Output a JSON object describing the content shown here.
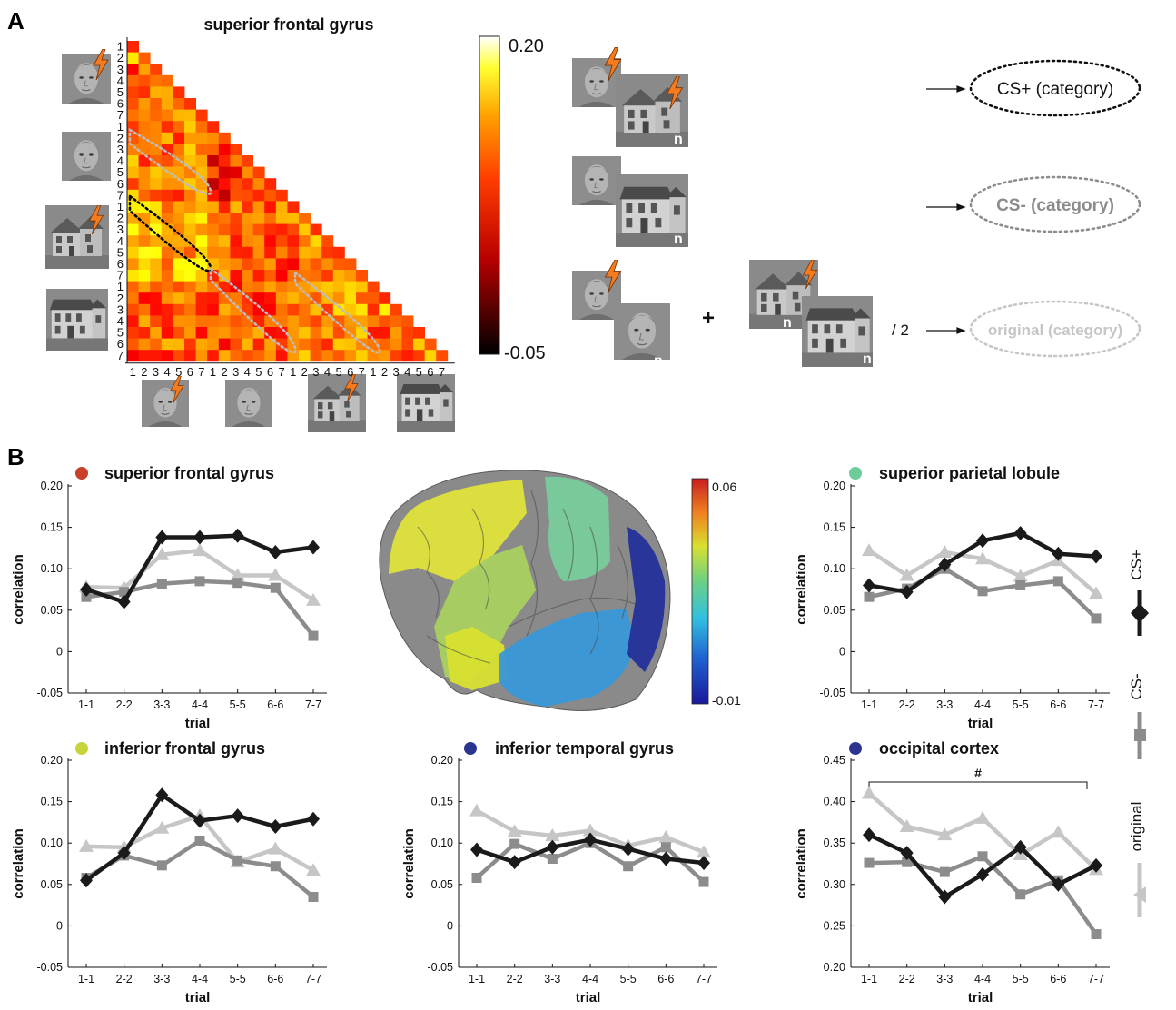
{
  "panels": {
    "a": "A",
    "b": "B"
  },
  "panel_a": {
    "title": "superior frontal gyrus",
    "colorbar": {
      "max_label": "0.20",
      "min_label": "-0.05"
    },
    "matrix_tick_labels": [
      "1",
      "2",
      "3",
      "4",
      "5",
      "6",
      "7"
    ],
    "markers": {
      "n": "n",
      "plus": "+",
      "div": "/ 2"
    },
    "schema": {
      "cs_plus": "CS+ (category)",
      "cs_minus": "CS- (category)",
      "original": "original (category)"
    }
  },
  "brain_colorbar": {
    "max_label": "0.06",
    "min_label": "-0.01"
  },
  "legend": {
    "cs_plus": "CS+",
    "cs_minus": "CS-",
    "original": "original"
  },
  "colors": {
    "cs_plus": "#1a1a1a",
    "cs_minus": "#8c8c8c",
    "original": "#c6c6c6"
  },
  "chart_data": [
    {
      "type": "line",
      "title": "superior frontal gyrus",
      "title_dot_color": "#c8402b",
      "xlabel": "trial",
      "ylabel": "correlation",
      "x": [
        "1-1",
        "2-2",
        "3-3",
        "4-4",
        "5-5",
        "6-6",
        "7-7"
      ],
      "ylim": [
        -0.05,
        0.2
      ],
      "yticks": [
        "0.20",
        "0.15",
        "0.10",
        "0.05",
        "0",
        "-0.05"
      ],
      "series": [
        {
          "name": "CS+",
          "values": [
            0.075,
            0.06,
            0.138,
            0.138,
            0.14,
            0.12,
            0.126
          ]
        },
        {
          "name": "CS-",
          "values": [
            0.066,
            0.072,
            0.082,
            0.085,
            0.083,
            0.077,
            0.019
          ]
        },
        {
          "name": "original",
          "values": [
            0.078,
            0.077,
            0.117,
            0.122,
            0.092,
            0.092,
            0.062
          ]
        }
      ]
    },
    {
      "type": "line",
      "title": "superior parietal lobule",
      "title_dot_color": "#6ecb9c",
      "xlabel": "trial",
      "ylabel": "correlation",
      "x": [
        "1-1",
        "2-2",
        "3-3",
        "4-4",
        "5-5",
        "6-6",
        "7-7"
      ],
      "ylim": [
        -0.05,
        0.2
      ],
      "yticks": [
        "0.20",
        "0.15",
        "0.10",
        "0.05",
        "0",
        "-0.05"
      ],
      "series": [
        {
          "name": "CS+",
          "values": [
            0.08,
            0.072,
            0.105,
            0.134,
            0.143,
            0.118,
            0.115
          ]
        },
        {
          "name": "CS-",
          "values": [
            0.066,
            0.076,
            0.1,
            0.073,
            0.08,
            0.085,
            0.04
          ]
        },
        {
          "name": "original",
          "values": [
            0.122,
            0.092,
            0.12,
            0.112,
            0.091,
            0.11,
            0.07
          ]
        }
      ]
    },
    {
      "type": "line",
      "title": "inferior frontal gyrus",
      "title_dot_color": "#c8d43a",
      "xlabel": "trial",
      "ylabel": "correlation",
      "x": [
        "1-1",
        "2-2",
        "3-3",
        "4-4",
        "5-5",
        "6-6",
        "7-7"
      ],
      "ylim": [
        -0.05,
        0.2
      ],
      "yticks": [
        "0.20",
        "0.15",
        "0.10",
        "0.05",
        "0",
        "-0.05"
      ],
      "series": [
        {
          "name": "CS+",
          "values": [
            0.055,
            0.088,
            0.158,
            0.127,
            0.133,
            0.12,
            0.129
          ]
        },
        {
          "name": "CS-",
          "values": [
            0.058,
            0.085,
            0.073,
            0.103,
            0.079,
            0.072,
            0.035
          ]
        },
        {
          "name": "original",
          "values": [
            0.096,
            0.095,
            0.118,
            0.133,
            0.077,
            0.093,
            0.067
          ]
        }
      ]
    },
    {
      "type": "line",
      "title": "inferior temporal gyrus",
      "title_dot_color": "#2b3590",
      "xlabel": "trial",
      "ylabel": "correlation",
      "x": [
        "1-1",
        "2-2",
        "3-3",
        "4-4",
        "5-5",
        "6-6",
        "7-7"
      ],
      "ylim": [
        -0.05,
        0.2
      ],
      "yticks": [
        "0.20",
        "0.15",
        "0.10",
        "0.05",
        "0",
        "-0.05"
      ],
      "series": [
        {
          "name": "CS+",
          "values": [
            0.092,
            0.077,
            0.095,
            0.104,
            0.093,
            0.081,
            0.076
          ]
        },
        {
          "name": "CS-",
          "values": [
            0.058,
            0.099,
            0.081,
            0.1,
            0.072,
            0.095,
            0.053
          ]
        },
        {
          "name": "original",
          "values": [
            0.139,
            0.114,
            0.109,
            0.115,
            0.097,
            0.107,
            0.089
          ]
        }
      ]
    },
    {
      "type": "line",
      "title": "occipital cortex",
      "title_dot_color": "#2b3590",
      "xlabel": "trial",
      "ylabel": "correlation",
      "x": [
        "1-1",
        "2-2",
        "3-3",
        "4-4",
        "5-5",
        "6-6",
        "7-7"
      ],
      "ylim": [
        0.2,
        0.45
      ],
      "yticks": [
        "0.45",
        "0.40",
        "0.35",
        "0.30",
        "0.25",
        "0.20"
      ],
      "annotation": "#",
      "series": [
        {
          "name": "CS+",
          "values": [
            0.36,
            0.338,
            0.285,
            0.312,
            0.345,
            0.3,
            0.323
          ]
        },
        {
          "name": "CS-",
          "values": [
            0.326,
            0.327,
            0.315,
            0.334,
            0.288,
            0.305,
            0.24
          ]
        },
        {
          "name": "original",
          "values": [
            0.41,
            0.37,
            0.36,
            0.38,
            0.336,
            0.363,
            0.318
          ]
        }
      ]
    }
  ]
}
